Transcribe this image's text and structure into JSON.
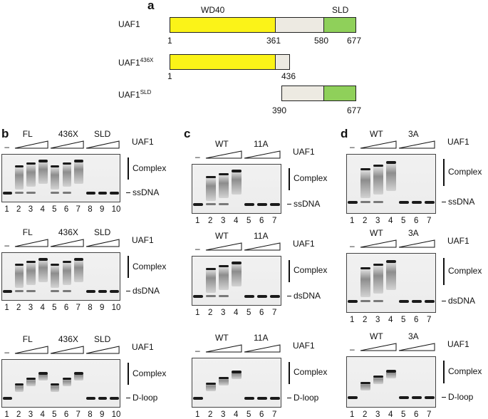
{
  "panel_a": {
    "label": "a",
    "constructs": [
      {
        "name": "UAF1",
        "superscript": "",
        "domain_labels": [
          "WD40",
          "SLD"
        ],
        "ticks": [
          "1",
          "361",
          "580",
          "677"
        ]
      },
      {
        "name": "UAF1",
        "superscript": "436X",
        "ticks": [
          "1",
          "436"
        ]
      },
      {
        "name": "UAF1",
        "superscript": "SLD",
        "ticks": [
          "390",
          "677"
        ]
      }
    ]
  },
  "panel_b": {
    "label": "b",
    "gels": [
      {
        "groups": [
          "FL",
          "436X",
          "SLD"
        ],
        "protein": "UAF1",
        "complex": "Complex",
        "substrate": "ssDNA",
        "lanes": [
          "1",
          "2",
          "3",
          "4",
          "5",
          "6",
          "7",
          "8",
          "9",
          "10"
        ]
      },
      {
        "groups": [
          "FL",
          "436X",
          "SLD"
        ],
        "protein": "UAF1",
        "complex": "Complex",
        "substrate": "dsDNA",
        "lanes": [
          "1",
          "2",
          "3",
          "4",
          "5",
          "6",
          "7",
          "8",
          "9",
          "10"
        ]
      },
      {
        "groups": [
          "FL",
          "436X",
          "SLD"
        ],
        "protein": "UAF1",
        "complex": "Complex",
        "substrate": "D-loop",
        "lanes": [
          "1",
          "2",
          "3",
          "4",
          "5",
          "6",
          "7",
          "8",
          "9",
          "10"
        ]
      }
    ]
  },
  "panel_c": {
    "label": "c",
    "gels": [
      {
        "groups": [
          "WT",
          "11A"
        ],
        "protein": "UAF1",
        "complex": "Complex",
        "substrate": "ssDNA",
        "lanes": [
          "1",
          "2",
          "3",
          "4",
          "5",
          "6",
          "7"
        ]
      },
      {
        "groups": [
          "WT",
          "11A"
        ],
        "protein": "UAF1",
        "complex": "Complex",
        "substrate": "dsDNA",
        "lanes": [
          "1",
          "2",
          "3",
          "4",
          "5",
          "6",
          "7"
        ]
      },
      {
        "groups": [
          "WT",
          "11A"
        ],
        "protein": "UAF1",
        "complex": "Complex",
        "substrate": "D-loop",
        "lanes": [
          "1",
          "2",
          "3",
          "4",
          "5",
          "6",
          "7"
        ]
      }
    ]
  },
  "panel_d": {
    "label": "d",
    "gels": [
      {
        "groups": [
          "WT",
          "3A"
        ],
        "protein": "UAF1",
        "complex": "Complex",
        "substrate": "ssDNA",
        "lanes": [
          "1",
          "2",
          "3",
          "4",
          "5",
          "6",
          "7"
        ]
      },
      {
        "groups": [
          "WT",
          "3A"
        ],
        "protein": "UAF1",
        "complex": "Complex",
        "substrate": "dsDNA",
        "lanes": [
          "1",
          "2",
          "3",
          "4",
          "5",
          "6",
          "7"
        ]
      },
      {
        "groups": [
          "WT",
          "3A"
        ],
        "protein": "UAF1",
        "complex": "Complex",
        "substrate": "D-loop",
        "lanes": [
          "1",
          "2",
          "3",
          "4",
          "5",
          "6",
          "7"
        ]
      }
    ]
  },
  "dash": "–"
}
